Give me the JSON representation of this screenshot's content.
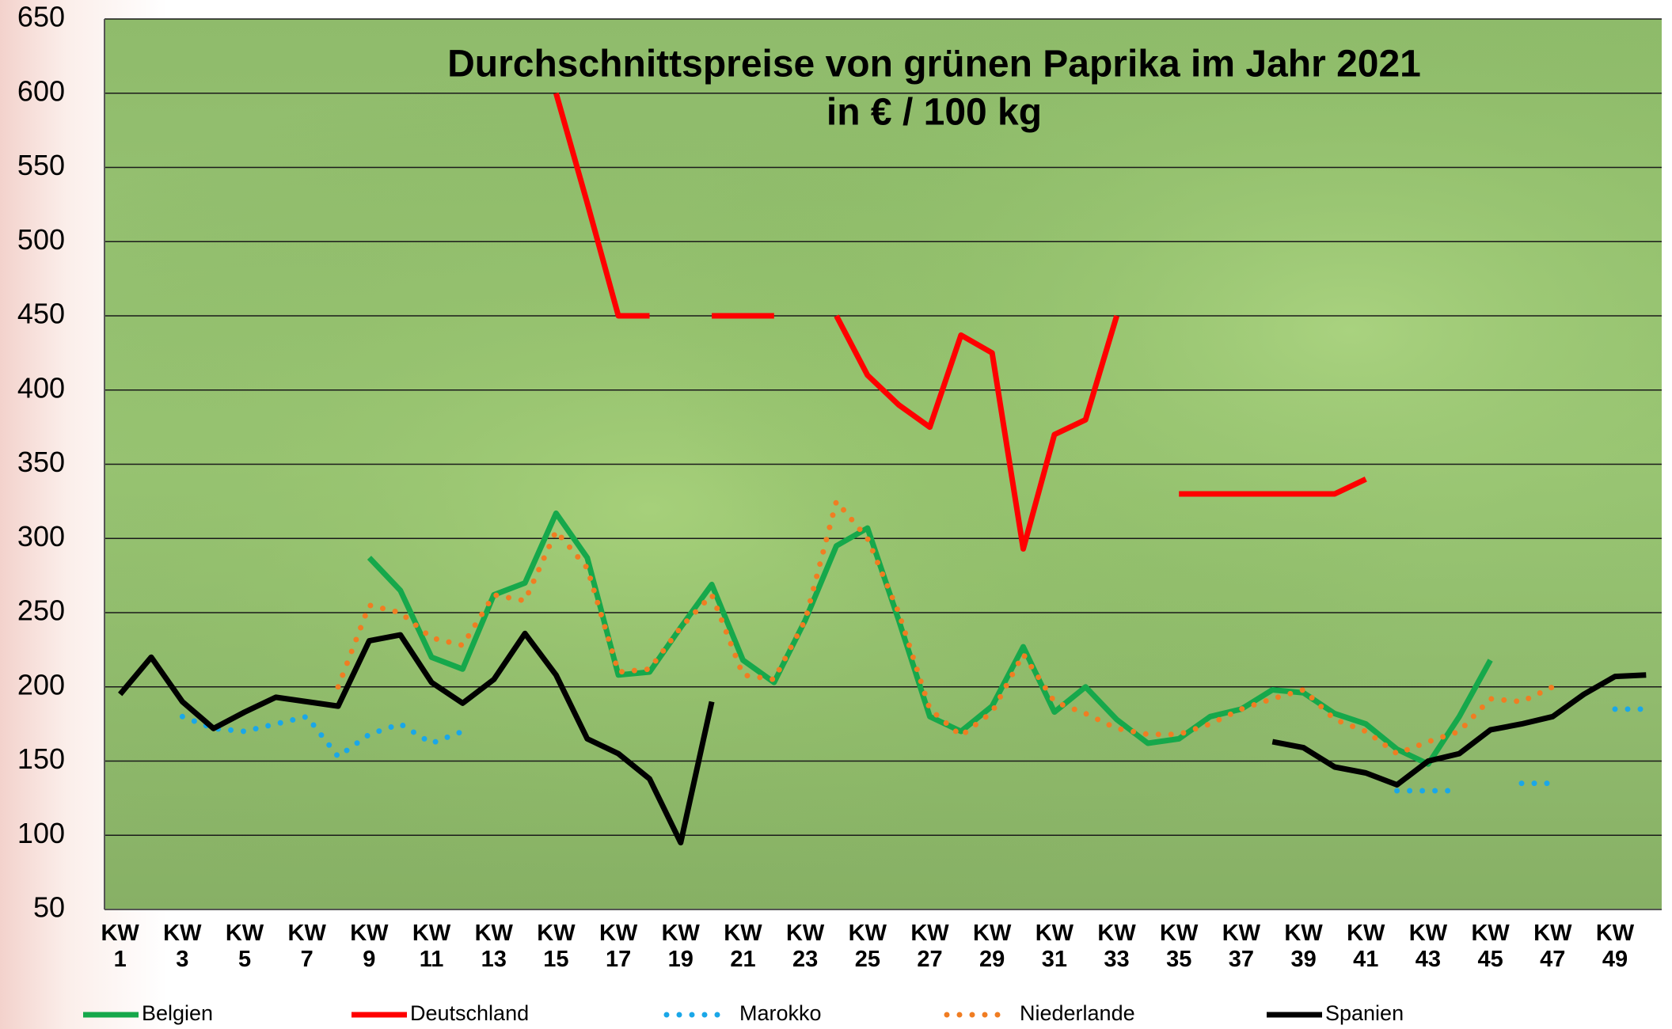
{
  "chart_data": {
    "type": "line",
    "title": "Durchschnittspreise von grünen Paprika im Jahr 2021",
    "subtitle": "in € / 100 kg",
    "categories": [
      "KW 1",
      null,
      "KW 3",
      null,
      "KW 5",
      null,
      "KW 7",
      null,
      "KW 9",
      null,
      "KW 11",
      null,
      "KW 13",
      null,
      "KW 15",
      null,
      "KW 17",
      null,
      "KW 19",
      null,
      "KW 21",
      null,
      "KW 23",
      null,
      "KW 25",
      null,
      "KW 27",
      null,
      "KW 29",
      null,
      "KW 31",
      null,
      "KW 33",
      null,
      "KW 35",
      null,
      "KW 37",
      null,
      "KW 39",
      null,
      "KW 41",
      null,
      "KW 43",
      null,
      "KW 45",
      null,
      "KW 47",
      null,
      "KW 49",
      null
    ],
    "ylim": [
      50,
      650
    ],
    "yticks": [
      50,
      100,
      150,
      200,
      250,
      300,
      350,
      400,
      450,
      500,
      550,
      600,
      650
    ],
    "grid": true,
    "legend": "bottom",
    "series": [
      {
        "name": "Belgien",
        "color": "#16a84b",
        "style": "solid",
        "values": [
          null,
          null,
          null,
          null,
          null,
          null,
          null,
          null,
          287,
          265,
          220,
          212,
          262,
          270,
          317,
          287,
          208,
          210,
          240,
          269,
          218,
          203,
          245,
          295,
          307,
          245,
          180,
          170,
          187,
          227,
          183,
          200,
          178,
          162,
          165,
          180,
          185,
          198,
          196,
          182,
          175,
          158,
          148,
          180,
          218,
          null,
          null,
          null,
          null,
          null
        ]
      },
      {
        "name": "Deutschland",
        "color": "#ff0000",
        "style": "solid",
        "values": [
          null,
          null,
          null,
          null,
          null,
          null,
          null,
          null,
          null,
          null,
          null,
          null,
          null,
          null,
          600,
          526,
          450,
          450,
          null,
          450,
          450,
          450,
          null,
          450,
          410,
          390,
          375,
          437,
          425,
          293,
          370,
          380,
          450,
          null,
          330,
          330,
          330,
          330,
          330,
          330,
          340,
          null,
          null,
          null,
          null,
          null,
          null,
          null,
          null,
          null
        ]
      },
      {
        "name": "Marokko",
        "color": "#1aa7e8",
        "style": "dotted",
        "values": [
          null,
          null,
          180,
          172,
          170,
          175,
          180,
          153,
          168,
          175,
          162,
          170,
          null,
          null,
          null,
          null,
          null,
          null,
          null,
          null,
          null,
          null,
          null,
          null,
          null,
          null,
          null,
          null,
          null,
          null,
          null,
          null,
          null,
          null,
          null,
          null,
          null,
          null,
          null,
          null,
          null,
          130,
          130,
          130,
          null,
          135,
          135,
          null,
          185,
          185
        ]
      },
      {
        "name": "Niederlande",
        "color": "#f07d22",
        "style": "dotted",
        "values": [
          null,
          null,
          null,
          null,
          null,
          null,
          null,
          200,
          255,
          250,
          233,
          228,
          262,
          258,
          305,
          280,
          210,
          212,
          240,
          262,
          208,
          205,
          245,
          325,
          300,
          250,
          185,
          167,
          183,
          222,
          190,
          182,
          172,
          168,
          168,
          175,
          185,
          192,
          198,
          178,
          170,
          155,
          163,
          170,
          192,
          190,
          200,
          null,
          null,
          null
        ]
      },
      {
        "name": "Spanien",
        "color": "#000000",
        "style": "solid",
        "values": [
          195,
          220,
          190,
          172,
          183,
          193,
          190,
          187,
          231,
          235,
          203,
          189,
          205,
          236,
          208,
          165,
          155,
          138,
          95,
          190,
          null,
          null,
          null,
          null,
          null,
          null,
          null,
          null,
          null,
          null,
          null,
          null,
          null,
          null,
          null,
          null,
          null,
          163,
          159,
          146,
          142,
          134,
          150,
          155,
          171,
          175,
          180,
          195,
          207,
          208
        ]
      }
    ]
  }
}
